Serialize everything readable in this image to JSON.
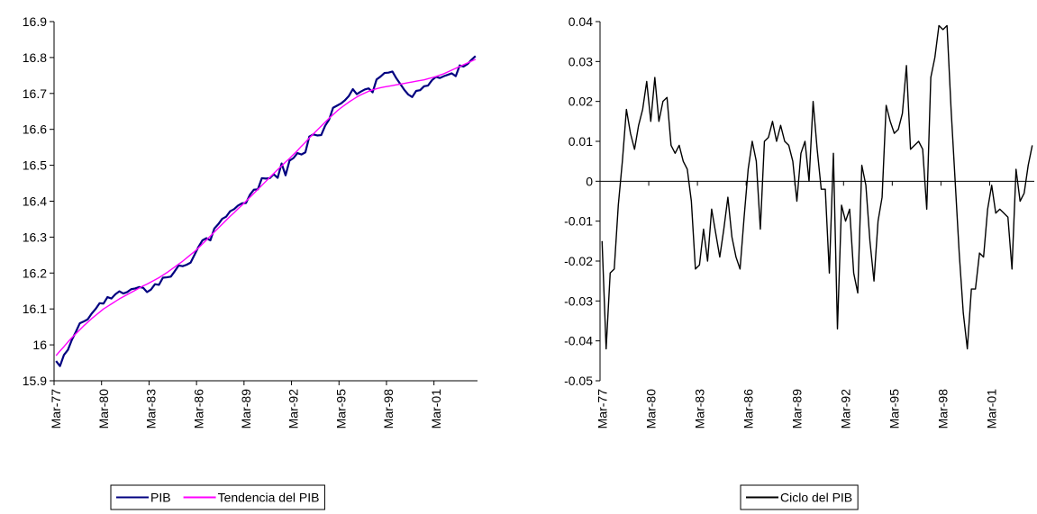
{
  "chart_data": [
    {
      "type": "line",
      "categories": [
        "Mar-77",
        null,
        null,
        null,
        null,
        null,
        null,
        null,
        null,
        null,
        null,
        null,
        "Mar-80",
        null,
        null,
        null,
        null,
        null,
        null,
        null,
        null,
        null,
        null,
        null,
        "Mar-83",
        null,
        null,
        null,
        null,
        null,
        null,
        null,
        null,
        null,
        null,
        null,
        "Mar-86",
        null,
        null,
        null,
        null,
        null,
        null,
        null,
        null,
        null,
        null,
        null,
        "Mar-89",
        null,
        null,
        null,
        null,
        null,
        null,
        null,
        null,
        null,
        null,
        null,
        "Mar-92",
        null,
        null,
        null,
        null,
        null,
        null,
        null,
        null,
        null,
        null,
        null,
        "Mar-95",
        null,
        null,
        null,
        null,
        null,
        null,
        null,
        null,
        null,
        null,
        null,
        "Mar-98",
        null,
        null,
        null,
        null,
        null,
        null,
        null,
        null,
        null,
        null,
        null,
        "Mar-01",
        null,
        null,
        null,
        null,
        null,
        null,
        null,
        null,
        null,
        null
      ],
      "series": [
        {
          "name": "PIB",
          "color": "#000080",
          "values": [
            15.955,
            15.941,
            15.972,
            15.986,
            16.014,
            16.036,
            16.06,
            16.065,
            16.071,
            16.087,
            16.1,
            16.116,
            16.115,
            16.133,
            16.129,
            16.141,
            16.149,
            16.143,
            16.147,
            16.155,
            16.157,
            16.161,
            16.159,
            16.147,
            16.154,
            16.169,
            16.167,
            16.187,
            16.188,
            16.19,
            16.205,
            16.221,
            16.219,
            16.223,
            16.229,
            16.251,
            16.273,
            16.291,
            16.297,
            16.291,
            16.324,
            16.336,
            16.351,
            16.357,
            16.372,
            16.378,
            16.388,
            16.394,
            16.395,
            16.418,
            16.432,
            16.433,
            16.464,
            16.463,
            16.464,
            16.475,
            16.465,
            16.505,
            16.472,
            16.513,
            16.52,
            16.534,
            16.53,
            16.536,
            16.58,
            16.586,
            16.583,
            16.584,
            16.61,
            16.627,
            16.66,
            16.666,
            16.672,
            16.681,
            16.693,
            16.712,
            16.698,
            16.705,
            16.711,
            16.714,
            16.703,
            16.739,
            16.747,
            16.757,
            16.758,
            16.761,
            16.742,
            16.726,
            16.71,
            16.697,
            16.69,
            16.707,
            16.709,
            16.72,
            16.722,
            16.737,
            16.746,
            16.743,
            16.748,
            16.752,
            16.756,
            16.748,
            16.778,
            16.775,
            16.782,
            16.794,
            16.804
          ]
        },
        {
          "name": "Tendencia del PIB",
          "color": "#ff00ff",
          "values": [
            15.97,
            15.983,
            15.995,
            16.008,
            16.02,
            16.031,
            16.042,
            16.053,
            16.063,
            16.073,
            16.082,
            16.091,
            16.1,
            16.107,
            16.114,
            16.121,
            16.128,
            16.134,
            16.14,
            16.146,
            16.152,
            16.158,
            16.164,
            16.169,
            16.175,
            16.181,
            16.187,
            16.194,
            16.201,
            16.209,
            16.217,
            16.225,
            16.233,
            16.242,
            16.251,
            16.26,
            16.27,
            16.281,
            16.292,
            16.303,
            16.314,
            16.325,
            16.336,
            16.347,
            16.358,
            16.368,
            16.379,
            16.389,
            16.4,
            16.411,
            16.422,
            16.433,
            16.444,
            16.455,
            16.466,
            16.477,
            16.488,
            16.498,
            16.509,
            16.519,
            16.53,
            16.541,
            16.553,
            16.564,
            16.576,
            16.587,
            16.598,
            16.609,
            16.62,
            16.631,
            16.641,
            16.651,
            16.66,
            16.668,
            16.676,
            16.683,
            16.69,
            16.696,
            16.701,
            16.706,
            16.71,
            16.713,
            16.716,
            16.718,
            16.72,
            16.722,
            16.724,
            16.726,
            16.728,
            16.73,
            16.732,
            16.734,
            16.736,
            16.738,
            16.741,
            16.744,
            16.747,
            16.751,
            16.755,
            16.76,
            16.765,
            16.77,
            16.775,
            16.78,
            16.785,
            16.79,
            16.795
          ]
        }
      ],
      "ylim": [
        15.9,
        16.9
      ],
      "yticks": [
        15.9,
        16,
        16.1,
        16.2,
        16.3,
        16.4,
        16.5,
        16.6,
        16.7,
        16.8,
        16.9
      ]
    },
    {
      "type": "line",
      "categories": [
        "Mar-77",
        null,
        null,
        null,
        null,
        null,
        null,
        null,
        null,
        null,
        null,
        null,
        "Mar-80",
        null,
        null,
        null,
        null,
        null,
        null,
        null,
        null,
        null,
        null,
        null,
        "Mar-83",
        null,
        null,
        null,
        null,
        null,
        null,
        null,
        null,
        null,
        null,
        null,
        "Mar-86",
        null,
        null,
        null,
        null,
        null,
        null,
        null,
        null,
        null,
        null,
        null,
        "Mar-89",
        null,
        null,
        null,
        null,
        null,
        null,
        null,
        null,
        null,
        null,
        null,
        "Mar-92",
        null,
        null,
        null,
        null,
        null,
        null,
        null,
        null,
        null,
        null,
        null,
        "Mar-95",
        null,
        null,
        null,
        null,
        null,
        null,
        null,
        null,
        null,
        null,
        null,
        "Mar-98",
        null,
        null,
        null,
        null,
        null,
        null,
        null,
        null,
        null,
        null,
        null,
        "Mar-01",
        null,
        null,
        null,
        null,
        null,
        null,
        null,
        null,
        null,
        null
      ],
      "series": [
        {
          "name": "Ciclo del PIB",
          "color": "#000000",
          "values": [
            -0.015,
            -0.042,
            -0.023,
            -0.022,
            -0.006,
            0.005,
            0.018,
            0.012,
            0.008,
            0.014,
            0.018,
            0.025,
            0.015,
            0.026,
            0.015,
            0.02,
            0.021,
            0.009,
            0.007,
            0.009,
            0.005,
            0.003,
            -0.005,
            -0.022,
            -0.021,
            -0.012,
            -0.02,
            -0.007,
            -0.013,
            -0.019,
            -0.012,
            -0.004,
            -0.014,
            -0.019,
            -0.022,
            -0.009,
            0.003,
            0.01,
            0.005,
            -0.012,
            0.01,
            0.011,
            0.015,
            0.01,
            0.014,
            0.01,
            0.009,
            0.005,
            -0.005,
            0.007,
            0.01,
            0.0,
            0.02,
            0.008,
            -0.002,
            -0.002,
            -0.023,
            0.007,
            -0.037,
            -0.006,
            -0.01,
            -0.007,
            -0.023,
            -0.028,
            0.004,
            -0.001,
            -0.015,
            -0.025,
            -0.01,
            -0.004,
            0.019,
            0.015,
            0.012,
            0.013,
            0.017,
            0.029,
            0.008,
            0.009,
            0.01,
            0.008,
            -0.007,
            0.026,
            0.031,
            0.039,
            0.038,
            0.039,
            0.018,
            0.0,
            -0.018,
            -0.033,
            -0.042,
            -0.027,
            -0.027,
            -0.018,
            -0.019,
            -0.007,
            -0.001,
            -0.008,
            -0.007,
            -0.008,
            -0.009,
            -0.022,
            0.003,
            -0.005,
            -0.003,
            0.004,
            0.009
          ]
        }
      ],
      "ylim": [
        -0.05,
        0.04
      ],
      "yticks": [
        -0.05,
        -0.04,
        -0.03,
        -0.02,
        -0.01,
        0,
        0.01,
        0.02,
        0.03,
        0.04
      ]
    }
  ]
}
